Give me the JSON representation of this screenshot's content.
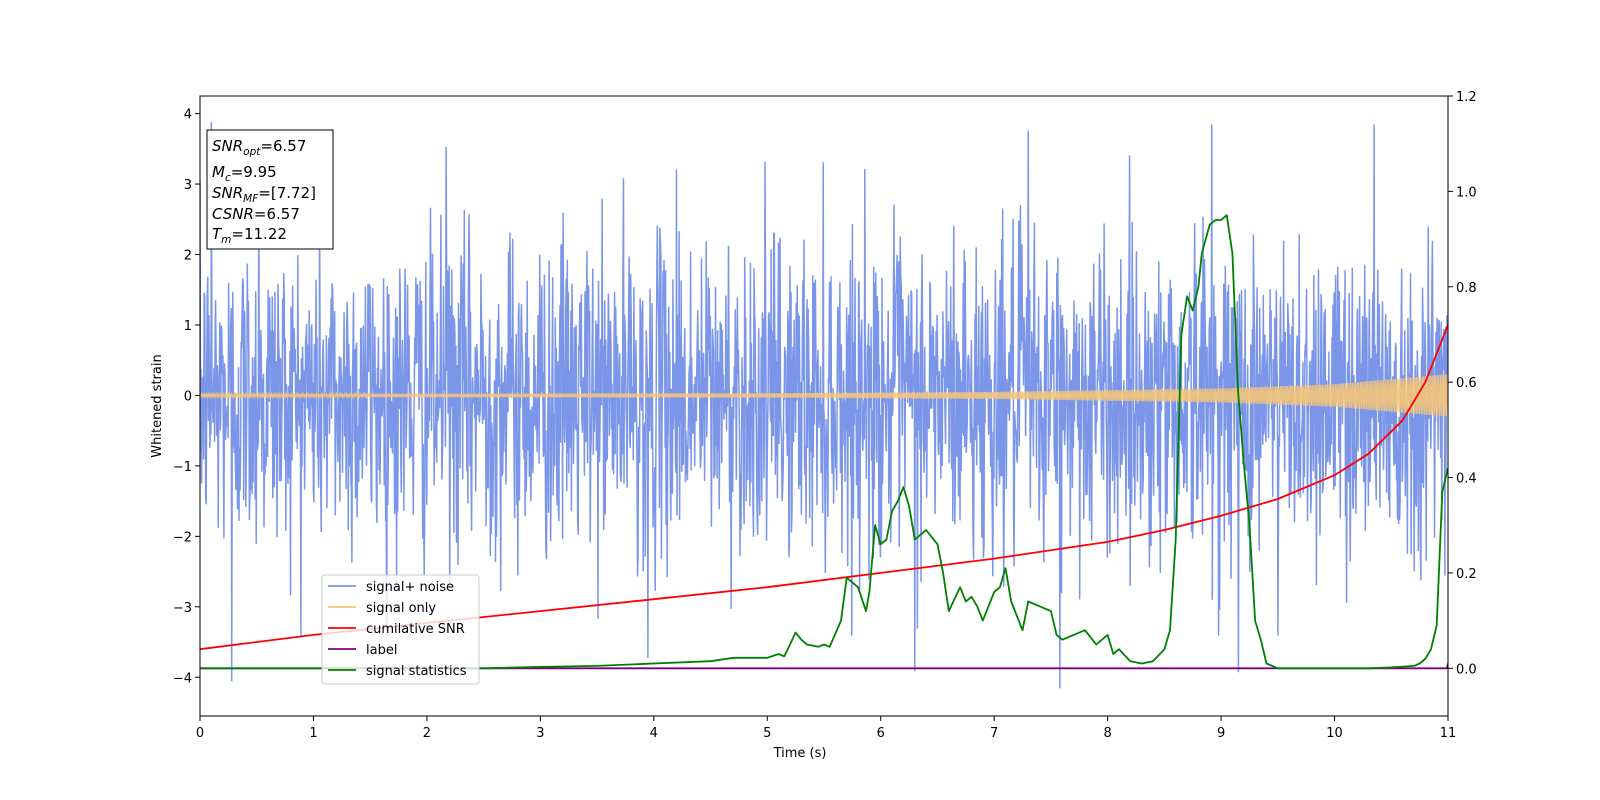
{
  "chart_data": {
    "type": "line",
    "xlabel": "Time (s)",
    "ylabel": "Whitened strain",
    "xlim": [
      0,
      11
    ],
    "ylim": [
      -4.55,
      4.25
    ],
    "y2lim": [
      -0.1,
      1.2
    ],
    "xticks": [
      0,
      1,
      2,
      3,
      4,
      5,
      6,
      7,
      8,
      9,
      10,
      11
    ],
    "yticks": [
      -4,
      -3,
      -2,
      -1,
      0,
      1,
      2,
      3,
      4
    ],
    "y2ticks": [
      "0.0",
      "0.2",
      "0.4",
      "0.6",
      "0.8",
      "1.0",
      "1.2"
    ],
    "legend_position": "lower-left",
    "grid": false,
    "annotation": {
      "lines": [
        {
          "base": "SNR",
          "sub": "opt",
          "value": "=6.57"
        },
        {
          "base": "M",
          "sub": "c",
          "value": "=9.95"
        },
        {
          "base": "SNR",
          "sub": "MF",
          "value": "=[7.72]"
        },
        {
          "base": "CSNR",
          "sub": "",
          "value": "=6.57"
        },
        {
          "base": "T",
          "sub": "m",
          "value": "=11.22"
        }
      ]
    },
    "series": [
      {
        "name": "signal+ noise",
        "color": "#7b96e8",
        "axis": "left",
        "description": "whitened noise, std ~1.1",
        "noise_std": 1.1,
        "peaks": [
          [
            0.1,
            3.87
          ],
          [
            0.28,
            -4.05
          ],
          [
            2.17,
            3.52
          ],
          [
            3.95,
            -3.72
          ],
          [
            6.3,
            -3.9
          ],
          [
            7.58,
            -4.15
          ],
          [
            8.92,
            3.84
          ],
          [
            9.15,
            -3.92
          ],
          [
            10.35,
            3.84
          ],
          [
            0.52,
            3.2
          ],
          [
            4.2,
            3.2
          ],
          [
            7.3,
            3.75
          ],
          [
            9.5,
            -3.4
          ]
        ]
      },
      {
        "name": "signal only",
        "color": "#f5c57a",
        "axis": "left",
        "amplitude_envelope": [
          [
            0,
            0.02
          ],
          [
            5,
            0.03
          ],
          [
            7,
            0.05
          ],
          [
            9,
            0.1
          ],
          [
            10,
            0.16
          ],
          [
            11,
            0.3
          ]
        ]
      },
      {
        "name": "cumilative SNR",
        "color": "#ff0000",
        "axis": "right",
        "x": [
          0,
          1,
          2,
          3,
          4,
          5,
          6,
          7,
          8,
          8.5,
          9,
          9.5,
          10,
          10.3,
          10.6,
          10.8,
          11
        ],
        "y": [
          0.04,
          0.07,
          0.095,
          0.12,
          0.145,
          0.17,
          0.2,
          0.23,
          0.265,
          0.29,
          0.32,
          0.355,
          0.405,
          0.45,
          0.52,
          0.6,
          0.72
        ]
      },
      {
        "name": "label",
        "color": "#800080",
        "axis": "right",
        "x": [
          0,
          10.99,
          11
        ],
        "y": [
          0.0,
          0.0,
          0.01
        ]
      },
      {
        "name": "signal statistics",
        "color": "#008000",
        "axis": "right",
        "x": [
          0,
          2.5,
          3,
          3.5,
          4,
          4.5,
          4.7,
          5.0,
          5.1,
          5.15,
          5.2,
          5.25,
          5.3,
          5.35,
          5.45,
          5.5,
          5.55,
          5.65,
          5.7,
          5.8,
          5.87,
          5.9,
          5.95,
          6.0,
          6.05,
          6.1,
          6.15,
          6.2,
          6.25,
          6.3,
          6.35,
          6.4,
          6.5,
          6.55,
          6.6,
          6.7,
          6.75,
          6.8,
          6.85,
          6.9,
          6.95,
          7.0,
          7.05,
          7.1,
          7.15,
          7.25,
          7.3,
          7.4,
          7.5,
          7.55,
          7.6,
          7.7,
          7.8,
          7.9,
          8.0,
          8.05,
          8.1,
          8.2,
          8.3,
          8.4,
          8.5,
          8.55,
          8.6,
          8.65,
          8.7,
          8.75,
          8.8,
          8.83,
          8.9,
          8.95,
          9.0,
          9.05,
          9.1,
          9.15,
          9.2,
          9.25,
          9.3,
          9.35,
          9.4,
          9.5,
          9.6,
          10.3,
          10.5,
          10.7,
          10.75,
          10.8,
          10.85,
          10.9,
          10.95,
          11.0
        ],
        "y": [
          0.0,
          0.0,
          0.003,
          0.005,
          0.01,
          0.015,
          0.022,
          0.022,
          0.03,
          0.025,
          0.05,
          0.075,
          0.06,
          0.05,
          0.045,
          0.05,
          0.045,
          0.1,
          0.19,
          0.17,
          0.12,
          0.16,
          0.3,
          0.26,
          0.27,
          0.33,
          0.35,
          0.38,
          0.34,
          0.27,
          0.28,
          0.29,
          0.26,
          0.2,
          0.12,
          0.17,
          0.14,
          0.15,
          0.13,
          0.1,
          0.13,
          0.16,
          0.17,
          0.21,
          0.14,
          0.08,
          0.14,
          0.13,
          0.12,
          0.07,
          0.06,
          0.07,
          0.08,
          0.05,
          0.07,
          0.03,
          0.04,
          0.015,
          0.01,
          0.015,
          0.04,
          0.08,
          0.27,
          0.7,
          0.78,
          0.75,
          0.8,
          0.87,
          0.93,
          0.94,
          0.94,
          0.95,
          0.87,
          0.58,
          0.43,
          0.3,
          0.1,
          0.06,
          0.01,
          0.0,
          0.0,
          0.0,
          0.002,
          0.005,
          0.01,
          0.02,
          0.04,
          0.09,
          0.37,
          0.42
        ]
      }
    ]
  }
}
